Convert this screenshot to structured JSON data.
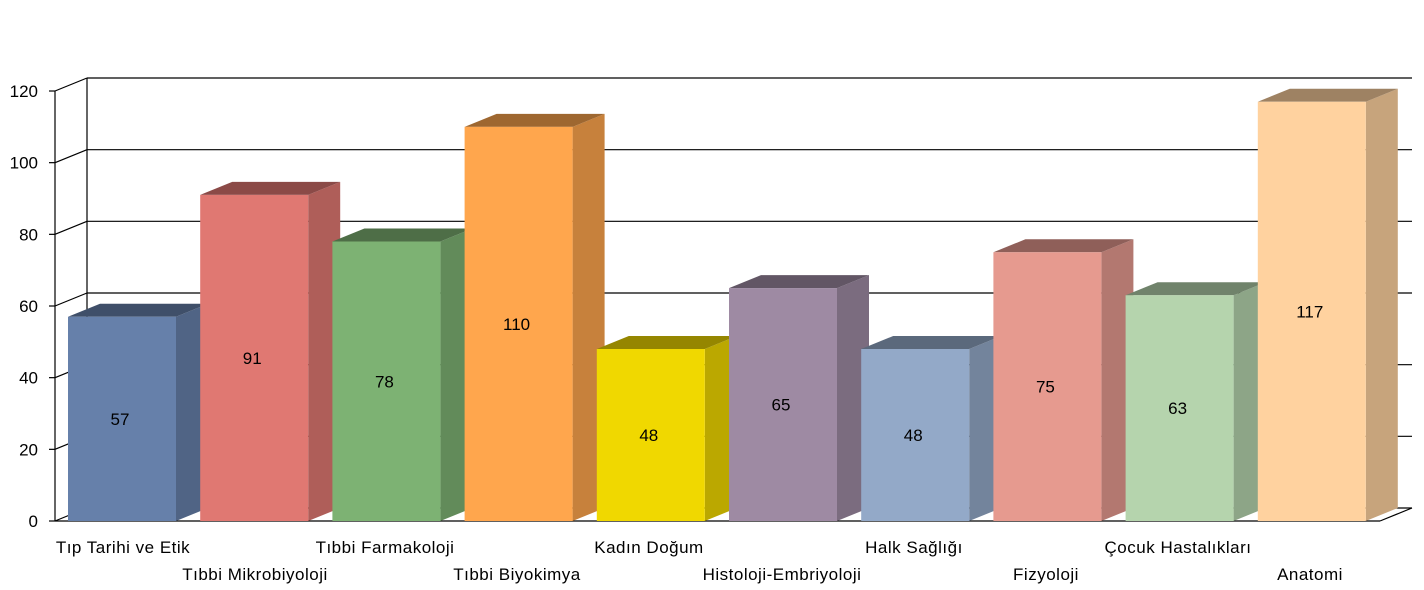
{
  "chart_data": {
    "type": "bar",
    "title": "",
    "xlabel": "",
    "ylabel": "",
    "ylim": [
      0,
      120
    ],
    "yticks": [
      0,
      20,
      40,
      60,
      80,
      100,
      120
    ],
    "grid": true,
    "legend": "none",
    "categories": [
      "Tıp Tarihi ve Etik",
      "Tıbbi Mikrobiyoloji",
      "Tıbbi Farmakoloji",
      "Tıbbi Biyokimya",
      "Kadın Doğum",
      "Histoloji-Embriyoloji",
      "Halk Sağlığı",
      "Fizyoloji",
      "Çocuk Hastalıkları",
      "Anatomi"
    ],
    "values": [
      57,
      91,
      78,
      110,
      48,
      65,
      48,
      75,
      63,
      117
    ],
    "colors": [
      "#6680aa",
      "#e07872",
      "#7db273",
      "#ffa64d",
      "#f0d800",
      "#9e8aa3",
      "#93a9c8",
      "#e69a8f",
      "#b5d4ad",
      "#ffd29f"
    ]
  }
}
